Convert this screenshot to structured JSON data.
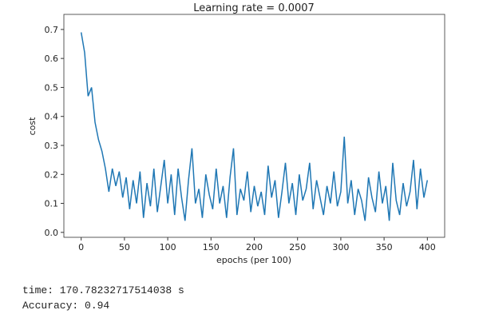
{
  "chart_data": {
    "type": "line",
    "title": "Learning rate = 0.0007",
    "xlabel": "epochs (per 100)",
    "ylabel": "cost",
    "x": [
      0,
      4,
      8,
      12,
      16,
      20,
      24,
      28,
      32,
      36,
      40,
      44,
      48,
      52,
      56,
      60,
      64,
      68,
      72,
      76,
      80,
      84,
      88,
      92,
      96,
      100,
      104,
      108,
      112,
      116,
      120,
      124,
      128,
      132,
      136,
      140,
      144,
      148,
      152,
      156,
      160,
      164,
      168,
      172,
      176,
      180,
      184,
      188,
      192,
      196,
      200,
      204,
      208,
      212,
      216,
      220,
      224,
      228,
      232,
      236,
      240,
      244,
      248,
      252,
      256,
      260,
      264,
      268,
      272,
      276,
      280,
      284,
      288,
      292,
      296,
      300,
      304,
      308,
      312,
      316,
      320,
      324,
      328,
      332,
      336,
      340,
      344,
      348,
      352,
      356,
      360,
      364,
      368,
      372,
      376,
      380,
      384,
      388,
      392,
      396,
      400
    ],
    "series": [
      {
        "name": "cost",
        "color": "#1f77b4",
        "values": [
          0.69,
          0.62,
          0.47,
          0.5,
          0.38,
          0.32,
          0.28,
          0.22,
          0.14,
          0.22,
          0.16,
          0.21,
          0.12,
          0.19,
          0.08,
          0.18,
          0.1,
          0.21,
          0.05,
          0.17,
          0.09,
          0.22,
          0.07,
          0.16,
          0.25,
          0.1,
          0.2,
          0.06,
          0.22,
          0.12,
          0.04,
          0.18,
          0.29,
          0.1,
          0.15,
          0.05,
          0.2,
          0.13,
          0.08,
          0.22,
          0.1,
          0.16,
          0.05,
          0.19,
          0.29,
          0.06,
          0.15,
          0.11,
          0.21,
          0.07,
          0.16,
          0.09,
          0.14,
          0.06,
          0.23,
          0.12,
          0.18,
          0.05,
          0.14,
          0.24,
          0.1,
          0.17,
          0.06,
          0.2,
          0.11,
          0.15,
          0.24,
          0.08,
          0.18,
          0.12,
          0.06,
          0.16,
          0.1,
          0.21,
          0.09,
          0.14,
          0.33,
          0.1,
          0.18,
          0.06,
          0.15,
          0.11,
          0.04,
          0.19,
          0.12,
          0.07,
          0.21,
          0.1,
          0.16,
          0.04,
          0.24,
          0.11,
          0.06,
          0.17,
          0.09,
          0.14,
          0.25,
          0.08,
          0.22,
          0.12,
          0.18
        ]
      }
    ],
    "xlim": [
      -20,
      420
    ],
    "xticks": [
      0,
      50,
      100,
      150,
      200,
      250,
      300,
      350,
      400
    ],
    "ylim": [
      -0.017,
      0.752
    ],
    "yticks": [
      {
        "value": 0,
        "label": "0.0"
      },
      0.1,
      0.2,
      0.3,
      0.4,
      0.5,
      0.6,
      0.7
    ]
  },
  "output": [
    "time: 170.78232717514038 s",
    "Accuracy: 0.94"
  ]
}
